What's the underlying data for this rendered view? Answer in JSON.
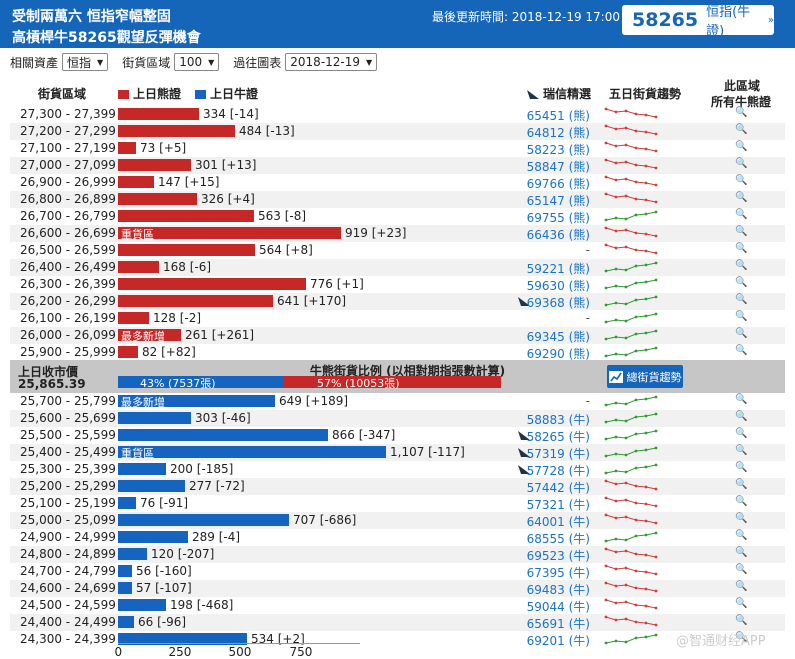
{
  "header": {
    "line1": "受制兩萬六 恒指窄幅整固",
    "line2": "高槓桿牛58265觀望反彈機會",
    "updated_label": "最後更新時間: 2018-12-19 17:00",
    "badge_number": "58265",
    "badge_label": "恒指(牛證)",
    "badge_arrow": "»"
  },
  "filters": {
    "asset_label": "相關資產",
    "asset_value": "恒指",
    "range_label": "街貨區域",
    "range_value": "100",
    "chart_label": "過往圖表",
    "chart_value": "2018-12-19"
  },
  "columns": {
    "range": "街貨區域",
    "bear_legend": "上日熊證",
    "bull_legend": "上日牛證",
    "ubs_pick": "瑞信精選",
    "trend": "五日街貨趨勢",
    "all_line1": "此區域",
    "all_line2": "所有牛熊證"
  },
  "colors": {
    "bear": "#c62828",
    "bull": "#1565c0",
    "header": "#1565b8",
    "trend_up": "#2e9c2e",
    "trend_down": "#d33c3c"
  },
  "bear_rows": [
    {
      "range": "27,300 - 27,399",
      "value": 334,
      "label": "334 [-14]",
      "code": "65451 (熊)",
      "trend": "down"
    },
    {
      "range": "27,200 - 27,299",
      "value": 484,
      "label": "484 [-13]",
      "code": "64812 (熊)",
      "trend": "down"
    },
    {
      "range": "27,100 - 27,199",
      "value": 73,
      "label": "73 [+5]",
      "code": "58223 (熊)",
      "trend": "down"
    },
    {
      "range": "27,000 - 27,099",
      "value": 301,
      "label": "301 [+13]",
      "code": "58847 (熊)",
      "trend": "down"
    },
    {
      "range": "26,900 - 26,999",
      "value": 147,
      "label": "147 [+15]",
      "code": "69766 (熊)",
      "trend": "down"
    },
    {
      "range": "26,800 - 26,899",
      "value": 326,
      "label": "326 [+4]",
      "code": "65147 (熊)",
      "trend": "down"
    },
    {
      "range": "26,700 - 26,799",
      "value": 563,
      "label": "563 [-8]",
      "code": "69755 (熊)",
      "trend": "up"
    },
    {
      "range": "26,600 - 26,699",
      "value": 919,
      "label": "919 [+23]",
      "code": "66436 (熊)",
      "trend": "down",
      "tag": "重貨區"
    },
    {
      "range": "26,500 - 26,599",
      "value": 564,
      "label": "564 [+8]",
      "code": "-",
      "trend": "down"
    },
    {
      "range": "26,400 - 26,499",
      "value": 168,
      "label": "168 [-6]",
      "code": "59221 (熊)",
      "trend": "up"
    },
    {
      "range": "26,300 - 26,399",
      "value": 776,
      "label": "776 [+1]",
      "code": "59630 (熊)",
      "trend": "up"
    },
    {
      "range": "26,200 - 26,299",
      "value": 641,
      "label": "641 [+170]",
      "code": "69368 (熊)",
      "trend": "up",
      "ranked": true
    },
    {
      "range": "26,100 - 26,199",
      "value": 128,
      "label": "128 [-2]",
      "code": "-",
      "trend": "up"
    },
    {
      "range": "26,000 - 26,099",
      "value": 261,
      "label": "261 [+261]",
      "code": "69345 (熊)",
      "trend": "up",
      "tag": "最多新增"
    },
    {
      "range": "25,900 - 25,999",
      "value": 82,
      "label": "82 [+82]",
      "code": "69290 (熊)",
      "trend": "up"
    }
  ],
  "middle": {
    "prev_close_label": "上日收市價",
    "prev_close_value": "25,865.39",
    "ratio_title": "牛熊街貨比例 (以相對期指張數計算)",
    "bull_pct": 43,
    "bull_text": "43% (7537張)",
    "bear_pct": 57,
    "bear_text": "57% (10053張)",
    "trend_button": "總街貨趨勢"
  },
  "bull_rows": [
    {
      "range": "25,700 - 25,799",
      "value": 649,
      "label": "649 [+189]",
      "code": "-",
      "trend": "up",
      "tag": "最多新增"
    },
    {
      "range": "25,600 - 25,699",
      "value": 303,
      "label": "303 [-46]",
      "code": "58883 (牛)",
      "trend": "up"
    },
    {
      "range": "25,500 - 25,599",
      "value": 866,
      "label": "866 [-347]",
      "code": "58265 (牛)",
      "trend": "up",
      "ranked": true
    },
    {
      "range": "25,400 - 25,499",
      "value": 1107,
      "label": "1,107 [-117]",
      "code": "57319 (牛)",
      "trend": "up",
      "tag": "重貨區",
      "ranked": true
    },
    {
      "range": "25,300 - 25,399",
      "value": 200,
      "label": "200 [-185]",
      "code": "57728 (牛)",
      "trend": "up",
      "ranked": true
    },
    {
      "range": "25,200 - 25,299",
      "value": 277,
      "label": "277 [-72]",
      "code": "57442 (牛)",
      "trend": "down"
    },
    {
      "range": "25,100 - 25,199",
      "value": 76,
      "label": "76 [-91]",
      "code": "57321 (牛)",
      "trend": "down"
    },
    {
      "range": "25,000 - 25,099",
      "value": 707,
      "label": "707 [-686]",
      "code": "64001 (牛)",
      "trend": "down"
    },
    {
      "range": "24,900 - 24,999",
      "value": 289,
      "label": "289 [-4]",
      "code": "68555 (牛)",
      "trend": "up"
    },
    {
      "range": "24,800 - 24,899",
      "value": 120,
      "label": "120 [-207]",
      "code": "69523 (牛)",
      "trend": "down"
    },
    {
      "range": "24,700 - 24,799",
      "value": 56,
      "label": "56 [-160]",
      "code": "67395 (牛)",
      "trend": "down"
    },
    {
      "range": "24,600 - 24,699",
      "value": 57,
      "label": "57 [-107]",
      "code": "69483 (牛)",
      "trend": "down"
    },
    {
      "range": "24,500 - 24,599",
      "value": 198,
      "label": "198 [-468]",
      "code": "59044 (牛)",
      "trend": "down"
    },
    {
      "range": "24,400 - 24,499",
      "value": 66,
      "label": "66 [-96]",
      "code": "65691 (牛)",
      "trend": "down"
    },
    {
      "range": "24,300 - 24,399",
      "value": 534,
      "label": "534 [+2]",
      "code": "69201 (牛)",
      "trend": "up"
    }
  ],
  "axis_ticks": [
    "0",
    "250",
    "500",
    "750"
  ],
  "watermark": "@智通财经APP"
}
